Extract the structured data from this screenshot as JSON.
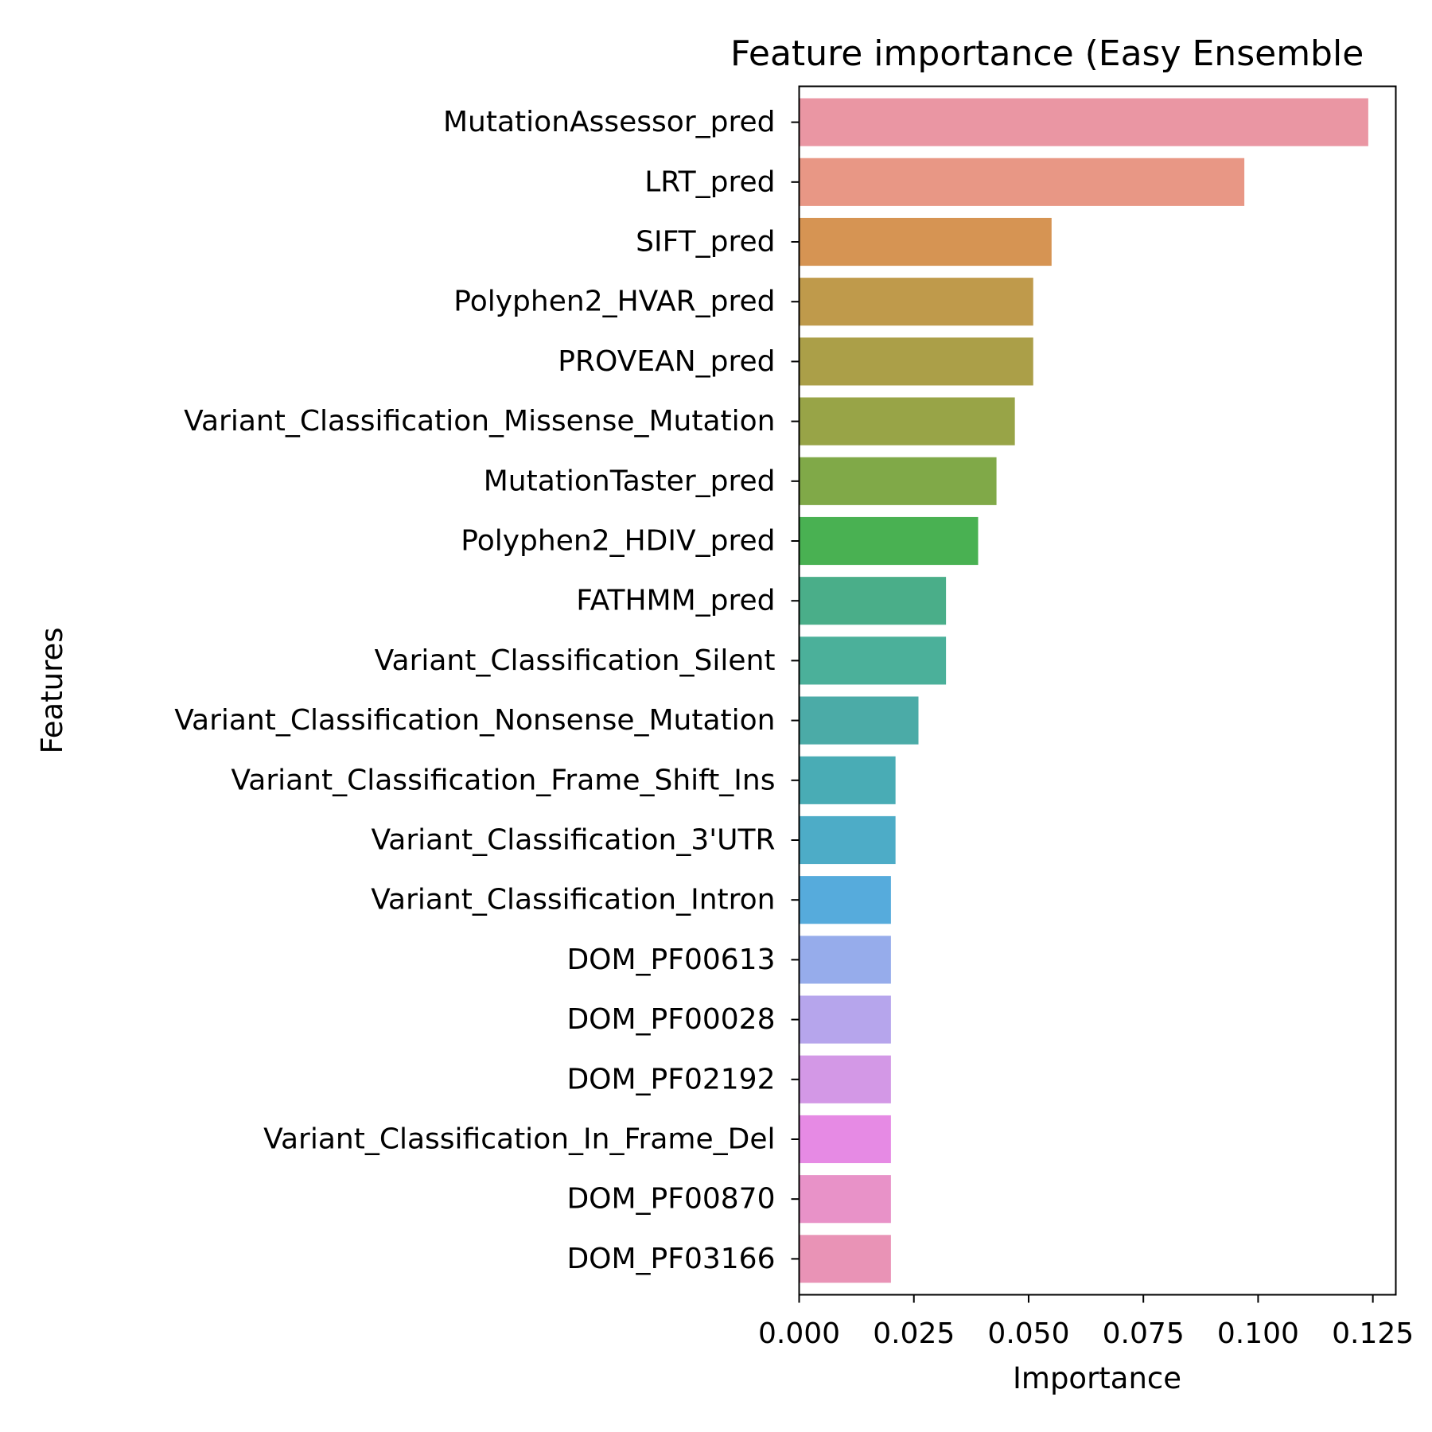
{
  "chart_data": {
    "type": "bar",
    "orientation": "horizontal",
    "title": "Feature importance (Easy Ensemble",
    "xlabel": "Importance",
    "ylabel": "Features",
    "xlim": [
      0,
      0.13
    ],
    "xticks": [
      "0.000",
      "0.025",
      "0.050",
      "0.075",
      "0.100",
      "0.125"
    ],
    "xtick_values": [
      0,
      0.025,
      0.05,
      0.075,
      0.1,
      0.125
    ],
    "grid": false,
    "legend": "none",
    "categories": [
      "MutationAssessor_pred",
      "LRT_pred",
      "SIFT_pred",
      "Polyphen2_HVAR_pred",
      "PROVEAN_pred",
      "Variant_Classification_Missense_Mutation",
      "MutationTaster_pred",
      "Polyphen2_HDIV_pred",
      "FATHMM_pred",
      "Variant_Classification_Silent",
      "Variant_Classification_Nonsense_Mutation",
      "Variant_Classification_Frame_Shift_Ins",
      "Variant_Classification_3'UTR",
      "Variant_Classification_Intron",
      "DOM_PF00613",
      "DOM_PF00028",
      "DOM_PF02192",
      "Variant_Classification_In_Frame_Del",
      "DOM_PF00870",
      "DOM_PF03166"
    ],
    "values": [
      0.124,
      0.097,
      0.055,
      0.051,
      0.051,
      0.047,
      0.043,
      0.039,
      0.032,
      0.032,
      0.026,
      0.021,
      0.021,
      0.02,
      0.02,
      0.02,
      0.02,
      0.02,
      0.02,
      0.02
    ],
    "colors": [
      "#ea96a3",
      "#e89785",
      "#d69453",
      "#bf9a4b",
      "#ab9f48",
      "#98a447",
      "#80a948",
      "#49b152",
      "#4aae89",
      "#4bb09a",
      "#4baba7",
      "#49acb5",
      "#4dacc7",
      "#56abdc",
      "#96aceb",
      "#b6a5ec",
      "#d398e6",
      "#e68ae4",
      "#e892c8",
      "#e993b6"
    ]
  }
}
